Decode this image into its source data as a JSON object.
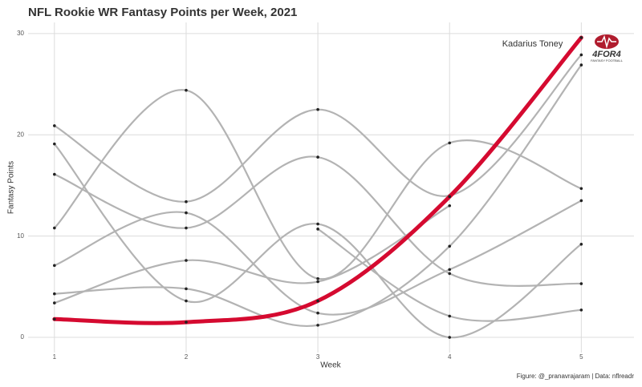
{
  "chart_data": {
    "type": "line",
    "title": "NFL Rookie WR Fantasy Points per Week, 2021",
    "x_label": "Week",
    "y_label": "Fantasy Points",
    "caption": "Figure: @_pranavrajaram | Data: nflreadr",
    "annotation": "Kadarius Toney",
    "logo": {
      "text": "4FOR4",
      "subtitle": "FANTASY FOOTBALL"
    },
    "x": [
      1,
      2,
      3,
      4,
      5
    ],
    "xlim": [
      0.8,
      5.4
    ],
    "xticks": [
      1,
      2,
      3,
      4,
      5
    ],
    "ylim": [
      -1.5,
      31.1
    ],
    "yticks": [
      0,
      10,
      20,
      30
    ],
    "grid": true,
    "series": [
      {
        "color": "#b3b3b3",
        "values": [
          10.8,
          24.4,
          5.8,
          19.2,
          14.7
        ]
      },
      {
        "color": "#b3b3b3",
        "values": [
          20.9,
          13.4,
          22.5,
          14.0,
          27.9
        ]
      },
      {
        "color": "#b3b3b3",
        "values": [
          19.1,
          3.6,
          11.2,
          0,
          9.2
        ]
      },
      {
        "color": "#b3b3b3",
        "values": [
          16.1,
          10.8,
          17.8,
          6.3,
          5.3
        ]
      },
      {
        "color": "#b3b3b3",
        "values": [
          7.1,
          12.3,
          2.4,
          6.7,
          13.5
        ]
      },
      {
        "color": "#b3b3b3",
        "values": [
          4.3,
          4.8,
          1.2,
          9.0,
          26.9
        ]
      },
      {
        "color": "#b3b3b3",
        "values": [
          3.4,
          7.6,
          5.5,
          13.0,
          null
        ]
      },
      {
        "color": "#b3b3b3",
        "values": [
          null,
          null,
          10.7,
          2.1,
          2.7
        ]
      },
      {
        "name": "Kadarius Toney",
        "color": "#d50a30",
        "values": [
          1.8,
          1.5,
          3.6,
          13.9,
          29.6
        ]
      }
    ]
  }
}
